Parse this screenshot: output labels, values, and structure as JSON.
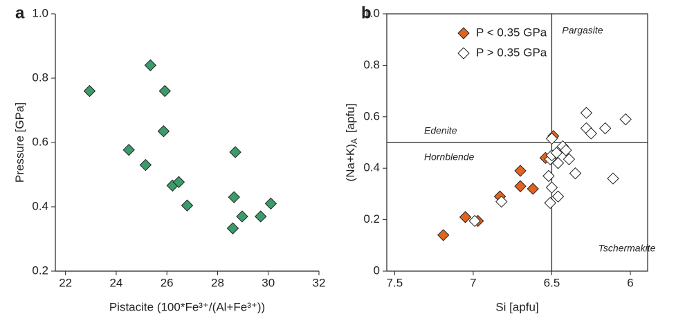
{
  "chart_data": [
    {
      "type": "scatter",
      "panel_label": "a",
      "xlabel": "Pistacite (100*Fe³⁺/(Al+Fe³⁺))",
      "ylabel": [
        "Pressure [GPa]"
      ],
      "xlim": [
        21.6,
        32
      ],
      "ylim": [
        0.2,
        1.0
      ],
      "xticks": [
        22,
        24,
        26,
        28,
        30,
        32
      ],
      "yticks": [
        0.2,
        0.4,
        0.6,
        0.8,
        {
          "value": 1,
          "label": "1.0"
        }
      ],
      "series": [
        {
          "color": "#3d9a6a",
          "x": [
            22.95,
            25.35,
            25.92,
            25.87,
            24.5,
            25.16,
            26.22,
            26.47,
            26.8,
            28.6,
            28.65,
            28.7,
            28.97,
            29.7,
            30.1
          ],
          "values": [
            0.76,
            0.84,
            0.76,
            0.635,
            0.577,
            0.53,
            0.466,
            0.477,
            0.404,
            0.333,
            0.43,
            0.57,
            0.37,
            0.37,
            0.41
          ]
        }
      ]
    },
    {
      "type": "scatter",
      "panel_label": "b",
      "xlabel": "Si [apfu]",
      "ylabel": [
        "(Na+K)",
        "A",
        "[apfu]"
      ],
      "xlim": [
        7.55,
        5.89
      ],
      "ylim": [
        0,
        1
      ],
      "xticks": [
        7.5,
        7,
        6.5,
        6
      ],
      "yticks": [
        0,
        0.2,
        0.4,
        0.6,
        0.8,
        {
          "value": 1,
          "label": "1.0"
        }
      ],
      "reference_lines": {
        "x": 6.5,
        "y": 0.5
      },
      "annotations": [
        "Pargasite",
        "Edenite",
        "Hornblende",
        "Tschermakite"
      ],
      "series": [
        {
          "name": "P < 0.35 GPa",
          "color": "#e0641e",
          "x": [
            7.19,
            7.05,
            6.97,
            6.83,
            6.7,
            6.7,
            6.62,
            6.54,
            6.49
          ],
          "values": [
            0.14,
            0.21,
            0.195,
            0.29,
            0.39,
            0.33,
            0.32,
            0.44,
            0.525
          ]
        },
        {
          "name": "P > 0.35 GPa",
          "color": "#ffffff",
          "x": [
            6.99,
            6.82,
            6.51,
            6.5,
            6.52,
            6.51,
            6.5,
            6.5,
            6.47,
            6.46,
            6.43,
            6.41,
            6.39,
            6.35,
            6.46,
            6.28,
            6.28,
            6.25,
            6.16,
            6.11,
            6.03
          ],
          "values": [
            0.195,
            0.27,
            0.435,
            0.45,
            0.37,
            0.265,
            0.325,
            0.515,
            0.46,
            0.42,
            0.485,
            0.47,
            0.435,
            0.38,
            0.29,
            0.615,
            0.555,
            0.535,
            0.555,
            0.36,
            0.59
          ]
        }
      ]
    }
  ]
}
